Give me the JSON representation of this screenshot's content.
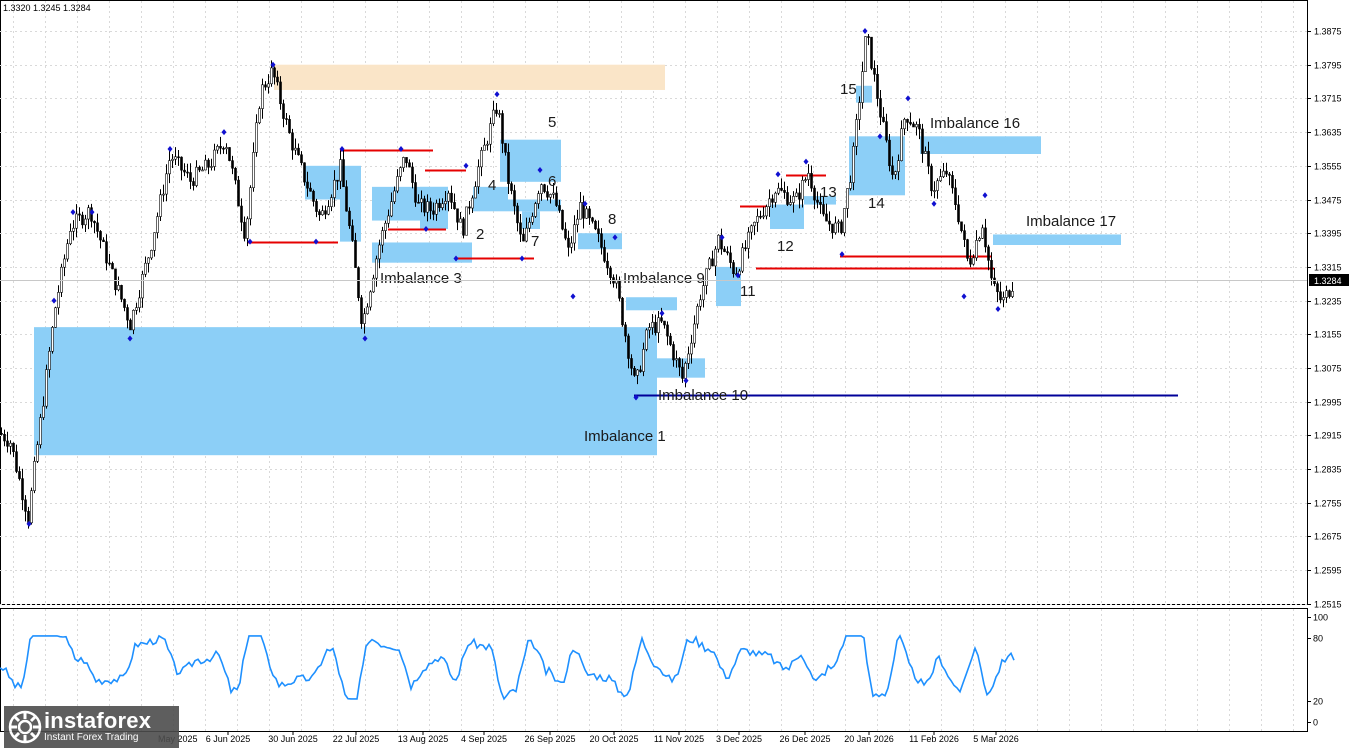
{
  "ohlc_header": "1.3320 1.3245 1.3284",
  "logo": {
    "brand": "instaforex",
    "tagline": "Instant Forex Trading"
  },
  "colors": {
    "imbalance": "#8ccff7",
    "supply_zone": "#fae5c8",
    "level_red": "#e60000",
    "level_blue": "#000099",
    "candle": "#000000",
    "indicator": "#1e90ff",
    "price_marker": "#000000"
  },
  "chart_data": {
    "type": "candlestick",
    "instrument_current_price": "1.3284",
    "y_ticks": [
      "1.3875",
      "1.3795",
      "1.3715",
      "1.3635",
      "1.3555",
      "1.3475",
      "1.3395",
      "1.3315",
      "1.3235",
      "1.3155",
      "1.3075",
      "1.2995",
      "1.2915",
      "1.2835",
      "1.2755",
      "1.2675",
      "1.2595",
      "1.2515"
    ],
    "x_ticks": [
      "6 Jun 2025",
      "30 Jun 2025",
      "22 Jul 2025",
      "13 Aug 2025",
      "4 Sep 2025",
      "26 Sep 2025",
      "20 Oct 2025",
      "11 Nov 2025",
      "3 Dec 2025",
      "26 Dec 2025",
      "20 Jan 2026",
      "11 Feb 2026",
      "5 Mar 2026"
    ],
    "x_ticks_partial": [
      "May 2025"
    ],
    "ylim": [
      1.2505,
      1.3925
    ],
    "price_path": [
      [
        0,
        1.292
      ],
      [
        10,
        1.29
      ],
      [
        28,
        1.272
      ],
      [
        38,
        1.291
      ],
      [
        55,
        1.322
      ],
      [
        70,
        1.341
      ],
      [
        90,
        1.345
      ],
      [
        110,
        1.331
      ],
      [
        130,
        1.318
      ],
      [
        150,
        1.336
      ],
      [
        170,
        1.358
      ],
      [
        190,
        1.352
      ],
      [
        210,
        1.356
      ],
      [
        225,
        1.362
      ],
      [
        245,
        1.339
      ],
      [
        260,
        1.373
      ],
      [
        272,
        1.378
      ],
      [
        290,
        1.362
      ],
      [
        305,
        1.352
      ],
      [
        320,
        1.343
      ],
      [
        340,
        1.355
      ],
      [
        352,
        1.336
      ],
      [
        362,
        1.318
      ],
      [
        378,
        1.336
      ],
      [
        392,
        1.348
      ],
      [
        405,
        1.358
      ],
      [
        418,
        1.346
      ],
      [
        432,
        1.345
      ],
      [
        448,
        1.35
      ],
      [
        462,
        1.34
      ],
      [
        478,
        1.355
      ],
      [
        497,
        1.37
      ],
      [
        508,
        1.352
      ],
      [
        522,
        1.336
      ],
      [
        540,
        1.352
      ],
      [
        555,
        1.347
      ],
      [
        568,
        1.335
      ],
      [
        580,
        1.346
      ],
      [
        598,
        1.338
      ],
      [
        615,
        1.328
      ],
      [
        635,
        1.303
      ],
      [
        648,
        1.317
      ],
      [
        662,
        1.318
      ],
      [
        682,
        1.305
      ],
      [
        700,
        1.325
      ],
      [
        718,
        1.338
      ],
      [
        735,
        1.33
      ],
      [
        755,
        1.342
      ],
      [
        775,
        1.35
      ],
      [
        795,
        1.347
      ],
      [
        808,
        1.354
      ],
      [
        822,
        1.343
      ],
      [
        840,
        1.34
      ],
      [
        852,
        1.356
      ],
      [
        866,
        1.387
      ],
      [
        880,
        1.368
      ],
      [
        893,
        1.352
      ],
      [
        905,
        1.368
      ],
      [
        918,
        1.364
      ],
      [
        932,
        1.35
      ],
      [
        946,
        1.354
      ],
      [
        956,
        1.346
      ],
      [
        968,
        1.332
      ],
      [
        982,
        1.342
      ],
      [
        992,
        1.327
      ],
      [
        1002,
        1.323
      ],
      [
        1014,
        1.3284
      ]
    ],
    "series": [
      {
        "name": "Imbalance 1",
        "price_high": 1.3172,
        "price_low": 1.2868,
        "start": "May 2025",
        "end": "20 Oct 2025"
      },
      {
        "name": "Imbalance 3",
        "price_high": 1.3373,
        "price_low": 1.3325,
        "start": "22 Jul 2025",
        "end": "4 Sep 2025"
      }
    ],
    "imbalances": [
      {
        "label": "Imbalance 1",
        "price_high": 1.3172,
        "price_low": 1.2868
      },
      {
        "label": "2",
        "price_high": 1.3505,
        "price_low": 1.3425
      },
      {
        "label": "Imbalance 3",
        "price_high": 1.3373,
        "price_low": 1.3325
      },
      {
        "label": "4",
        "price_high": 1.3505,
        "price_low": 1.3475
      },
      {
        "label": "5",
        "price_high": 1.3617,
        "price_low": 1.3517
      },
      {
        "label": "6",
        "price_high": 1.3475,
        "price_low": 1.3447
      },
      {
        "label": "7",
        "price_high": 1.3447,
        "price_low": 1.3405
      },
      {
        "label": "8",
        "price_high": 1.3395,
        "price_low": 1.3357
      },
      {
        "label": "Imbalance 9",
        "price_high": 1.3243,
        "price_low": 1.3212
      },
      {
        "label": "Imbalance 10",
        "price_high": 1.3098,
        "price_low": 1.3052
      },
      {
        "label": "11",
        "price_high": 1.3315,
        "price_low": 1.3222
      },
      {
        "label": "12",
        "price_high": 1.3463,
        "price_low": 1.3405
      },
      {
        "label": "13",
        "price_high": 1.3483,
        "price_low": 1.3463
      },
      {
        "label": "14",
        "price_high": 1.3625,
        "price_low": 1.3485
      },
      {
        "label": "15",
        "price_high": 1.3745,
        "price_low": 1.3705
      },
      {
        "label": "Imbalance 16",
        "price_high": 1.3625,
        "price_low": 1.3583
      },
      {
        "label": "Imbalance 17",
        "price_high": 1.3392,
        "price_low": 1.3367
      }
    ],
    "supply_zone": {
      "price_high": 1.3795,
      "price_low": 1.3735
    },
    "levels": [
      {
        "color": "red",
        "price": 1.3375
      },
      {
        "color": "red",
        "price": 1.3592
      },
      {
        "color": "red",
        "price": 1.3405
      },
      {
        "color": "red",
        "price": 1.3545
      },
      {
        "color": "red",
        "price": 1.3337
      },
      {
        "color": "red",
        "price": 1.346
      },
      {
        "color": "red",
        "price": 1.3532
      },
      {
        "color": "red",
        "price": 1.334
      },
      {
        "color": "red",
        "price": 1.3312
      },
      {
        "color": "blue",
        "price": 1.301
      }
    ],
    "indicator": {
      "type": "oscillator",
      "y_ticks": [
        "100",
        "80",
        "20",
        "0"
      ],
      "ylim": [
        0,
        100
      ]
    }
  }
}
